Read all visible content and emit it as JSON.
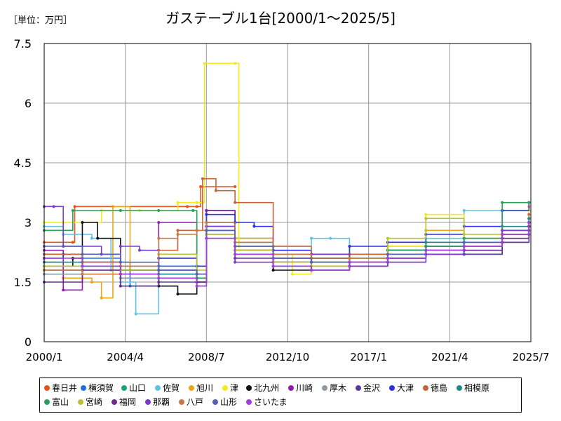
{
  "unit_label": "［単位：万円］",
  "title": "ガステーブル1台[2000/1～2025/5]",
  "chart_data": {
    "type": "line",
    "title": "ガステーブル1台[2000/1～2025/5]",
    "ylabel": "［単位：万円］",
    "ylim": [
      0,
      7.5
    ],
    "y_ticks": [
      "0",
      "1.5",
      "3",
      "4.5",
      "6",
      "7.5"
    ],
    "xlim": [
      2000.0,
      2025.5
    ],
    "x_tick_values": [
      2000.0,
      2004.25,
      2008.5,
      2012.75,
      2017.0,
      2021.25,
      2025.5
    ],
    "x_ticks": [
      "2000/1",
      "2004/4",
      "2008/7",
      "2012/10",
      "2017/1",
      "2021/4",
      "2025/7"
    ],
    "grid": true,
    "legend_position": "bottom",
    "series": [
      {
        "name": "春日井",
        "color": "#e8541c",
        "x": [
          2000.0,
          2001.5,
          2001.6,
          2007.5,
          2008.0,
          2008.2,
          2010.0
        ],
        "y": [
          2.5,
          2.5,
          3.4,
          3.4,
          3.4,
          3.9,
          3.9
        ]
      },
      {
        "name": "横須賀",
        "color": "#1f6fe0",
        "x": [
          2000.0,
          2002.0,
          2004.0,
          2004.5,
          2006.0,
          2008.0,
          2008.5,
          2010.0,
          2012.0,
          2014.0,
          2016.0,
          2018.0,
          2020.0,
          2022.0,
          2024.0,
          2025.4
        ],
        "y": [
          2.0,
          2.1,
          2.0,
          1.4,
          1.9,
          1.6,
          3.0,
          2.6,
          2.2,
          2.1,
          2.2,
          2.3,
          2.4,
          2.5,
          2.7,
          3.0
        ]
      },
      {
        "name": "山口",
        "color": "#19a27e",
        "x": [
          2000.0,
          2002.0,
          2004.0,
          2006.0,
          2008.0,
          2008.5,
          2010.0,
          2012.0,
          2014.0,
          2016.0,
          2018.0,
          2020.0,
          2022.0,
          2024.0,
          2025.4
        ],
        "y": [
          2.2,
          1.9,
          1.8,
          1.7,
          1.5,
          2.9,
          2.5,
          2.0,
          1.9,
          2.0,
          2.1,
          2.3,
          2.4,
          2.8,
          3.1
        ]
      },
      {
        "name": "佐賀",
        "color": "#5ec2e6",
        "x": [
          2000.0,
          2001.0,
          2002.5,
          2003.5,
          2004.0,
          2004.8,
          2006.0,
          2008.0,
          2008.5,
          2010.0,
          2012.0,
          2014.0,
          2015.0,
          2016.0,
          2018.0,
          2020.0,
          2022.0,
          2024.0,
          2025.4
        ],
        "y": [
          2.9,
          2.7,
          2.6,
          1.8,
          1.5,
          0.7,
          1.8,
          1.6,
          3.0,
          2.6,
          2.4,
          2.6,
          2.6,
          2.2,
          2.3,
          2.6,
          3.3,
          3.3,
          3.3
        ]
      },
      {
        "name": "旭川",
        "color": "#eaa614",
        "x": [
          2000.0,
          2001.0,
          2002.5,
          2003.0,
          2003.6,
          2004.5,
          2006.0,
          2008.0,
          2008.5,
          2010.0,
          2012.0,
          2014.0,
          2016.0,
          2018.0,
          2020.0,
          2022.0,
          2024.0,
          2025.4
        ],
        "y": [
          2.0,
          1.6,
          1.5,
          1.1,
          3.4,
          1.8,
          2.1,
          1.6,
          2.8,
          2.6,
          2.1,
          1.9,
          2.0,
          2.4,
          2.8,
          2.6,
          2.8,
          3.4
        ]
      },
      {
        "name": "津",
        "color": "#f5ea1a",
        "x": [
          2000.0,
          2001.0,
          2003.0,
          2005.0,
          2007.0,
          2008.0,
          2008.3,
          2008.4,
          2010.0,
          2010.2,
          2012.0,
          2013.0,
          2014.0,
          2016.0,
          2018.0,
          2020.0,
          2022.0,
          2024.0,
          2025.4
        ],
        "y": [
          3.0,
          3.0,
          3.3,
          3.3,
          3.5,
          3.5,
          3.5,
          7.0,
          7.0,
          2.4,
          2.2,
          1.7,
          1.8,
          2.0,
          2.4,
          3.2,
          2.6,
          2.8,
          3.3
        ]
      },
      {
        "name": "北九州",
        "color": "#111111",
        "x": [
          2000.0,
          2001.5,
          2002.0,
          2002.8,
          2004.0,
          2006.0,
          2007.0,
          2008.0,
          2008.5,
          2010.0,
          2012.0,
          2014.0,
          2016.0,
          2018.0,
          2020.0,
          2022.0,
          2024.0,
          2025.4
        ],
        "y": [
          1.9,
          2.1,
          3.0,
          2.6,
          1.6,
          1.4,
          1.2,
          1.5,
          3.3,
          2.3,
          1.8,
          2.0,
          2.1,
          2.3,
          2.2,
          2.2,
          2.5,
          2.9
        ]
      },
      {
        "name": "川崎",
        "color": "#8e1fb0",
        "x": [
          2000.0,
          2001.0,
          2002.0,
          2004.0,
          2006.0,
          2008.0,
          2008.5,
          2010.0,
          2012.0,
          2014.0,
          2016.0,
          2018.0,
          2020.0,
          2022.0,
          2024.0,
          2025.4
        ],
        "y": [
          2.3,
          1.3,
          2.0,
          1.7,
          3.0,
          1.5,
          3.3,
          2.2,
          2.0,
          2.1,
          2.0,
          2.1,
          2.3,
          2.5,
          2.7,
          2.9
        ]
      },
      {
        "name": "厚木",
        "color": "#8e99a6",
        "x": [
          2000.0,
          2002.0,
          2004.0,
          2006.0,
          2008.0,
          2008.5,
          2010.0,
          2012.0,
          2014.0,
          2016.0,
          2018.0,
          2020.0,
          2022.0,
          2024.0,
          2025.4
        ],
        "y": [
          1.7,
          1.8,
          1.6,
          1.8,
          1.6,
          2.7,
          2.4,
          2.0,
          2.1,
          1.9,
          2.2,
          2.4,
          2.3,
          2.6,
          3.0
        ]
      },
      {
        "name": "金沢",
        "color": "#5b3a99",
        "x": [
          2000.0,
          2002.0,
          2004.0,
          2006.0,
          2008.0,
          2008.5,
          2010.0,
          2012.0,
          2014.0,
          2016.0,
          2018.0,
          2020.0,
          2022.0,
          2024.0,
          2025.4
        ],
        "y": [
          1.8,
          2.0,
          1.7,
          1.5,
          1.4,
          2.8,
          2.3,
          2.0,
          1.8,
          2.0,
          2.1,
          2.4,
          2.2,
          2.5,
          2.8
        ]
      },
      {
        "name": "大津",
        "color": "#2e2fe6",
        "x": [
          2000.0,
          2001.0,
          2002.0,
          2004.0,
          2006.0,
          2008.0,
          2008.5,
          2010.0,
          2011.0,
          2012.0,
          2014.0,
          2016.0,
          2018.0,
          2020.0,
          2022.0,
          2024.0,
          2025.4
        ],
        "y": [
          2.1,
          2.2,
          2.0,
          1.8,
          2.1,
          1.9,
          3.2,
          3.0,
          2.9,
          2.3,
          2.2,
          2.4,
          2.5,
          2.7,
          2.9,
          3.3,
          3.5
        ]
      },
      {
        "name": "徳島",
        "color": "#c4643b",
        "x": [
          2000.0,
          2002.0,
          2004.0,
          2006.0,
          2007.0,
          2008.0,
          2008.3,
          2009.0,
          2010.0,
          2012.0,
          2014.0,
          2016.0,
          2018.0,
          2020.0,
          2022.0,
          2024.0,
          2025.4
        ],
        "y": [
          2.2,
          2.0,
          1.9,
          2.3,
          2.8,
          2.8,
          4.1,
          3.8,
          3.5,
          2.4,
          2.1,
          2.2,
          2.3,
          2.5,
          2.4,
          2.8,
          3.2
        ]
      },
      {
        "name": "相模原",
        "color": "#1d8a8a",
        "x": [
          2000.0,
          2002.0,
          2004.0,
          2006.0,
          2008.0,
          2008.5,
          2010.0,
          2012.0,
          2014.0,
          2016.0,
          2018.0,
          2020.0,
          2022.0,
          2024.0,
          2025.4
        ],
        "y": [
          2.0,
          1.9,
          1.8,
          1.7,
          1.6,
          2.8,
          2.5,
          2.1,
          2.0,
          2.1,
          2.3,
          2.5,
          2.6,
          2.9,
          3.1
        ]
      },
      {
        "name": "富山",
        "color": "#2aa15a",
        "x": [
          2000.0,
          2001.5,
          2004.0,
          2006.0,
          2007.8,
          2008.0,
          2008.5,
          2010.0,
          2012.0,
          2014.0,
          2016.0,
          2018.0,
          2020.0,
          2022.0,
          2024.0,
          2025.4
        ],
        "y": [
          2.8,
          3.3,
          3.3,
          3.3,
          3.3,
          1.6,
          2.9,
          2.4,
          2.2,
          2.0,
          2.1,
          2.3,
          2.4,
          2.6,
          3.5,
          3.5
        ]
      },
      {
        "name": "宮崎",
        "color": "#b8c232",
        "x": [
          2000.0,
          2002.0,
          2004.0,
          2006.0,
          2008.0,
          2008.5,
          2010.0,
          2012.0,
          2014.0,
          2016.0,
          2018.0,
          2020.0,
          2022.0,
          2024.0,
          2025.4
        ],
        "y": [
          1.9,
          1.7,
          1.8,
          2.2,
          1.8,
          2.7,
          2.3,
          2.0,
          1.9,
          2.1,
          2.6,
          3.1,
          2.7,
          2.7,
          3.0
        ]
      },
      {
        "name": "福岡",
        "color": "#6e2a8c",
        "x": [
          2000.0,
          2002.0,
          2004.0,
          2006.0,
          2008.0,
          2008.5,
          2010.0,
          2012.0,
          2014.0,
          2016.0,
          2018.0,
          2020.0,
          2022.0,
          2024.0,
          2025.4
        ],
        "y": [
          1.5,
          1.8,
          1.4,
          1.6,
          1.5,
          2.6,
          2.1,
          1.9,
          1.8,
          1.9,
          2.0,
          2.2,
          2.3,
          2.6,
          2.9
        ]
      },
      {
        "name": "那覇",
        "color": "#7a3ad0",
        "x": [
          2000.0,
          2000.5,
          2001.0,
          2003.0,
          2004.0,
          2005.0,
          2006.0,
          2008.0,
          2008.5,
          2010.0,
          2012.0,
          2014.0,
          2016.0,
          2018.0,
          2020.0,
          2022.0,
          2024.0,
          2025.4
        ],
        "y": [
          3.4,
          3.4,
          2.4,
          2.2,
          2.4,
          2.3,
          1.8,
          1.7,
          2.9,
          2.0,
          2.1,
          2.2,
          1.9,
          2.0,
          2.2,
          2.4,
          2.8,
          2.7
        ]
      },
      {
        "name": "八戸",
        "color": "#c97a4a",
        "x": [
          2000.0,
          2002.0,
          2004.0,
          2006.0,
          2007.0,
          2008.0,
          2008.5,
          2010.0,
          2012.0,
          2014.0,
          2016.0,
          2018.0,
          2020.0,
          2022.0,
          2024.0,
          2025.4
        ],
        "y": [
          1.8,
          1.7,
          1.9,
          2.6,
          2.7,
          2.8,
          3.0,
          2.5,
          2.2,
          2.0,
          2.1,
          2.2,
          2.3,
          2.4,
          2.7,
          3.0
        ]
      },
      {
        "name": "山形",
        "color": "#5560b8",
        "x": [
          2000.0,
          2002.0,
          2004.0,
          2006.0,
          2008.0,
          2008.5,
          2010.0,
          2012.0,
          2014.0,
          2016.0,
          2018.0,
          2020.0,
          2022.0,
          2024.0,
          2025.4
        ],
        "y": [
          2.4,
          2.2,
          2.0,
          1.8,
          1.7,
          2.8,
          2.4,
          2.1,
          2.0,
          2.0,
          2.2,
          2.3,
          2.5,
          2.7,
          3.0
        ]
      },
      {
        "name": "さいたま",
        "color": "#a53ee0",
        "x": [
          2000.0,
          2002.0,
          2004.0,
          2006.0,
          2008.0,
          2008.5,
          2010.0,
          2012.0,
          2014.0,
          2016.0,
          2018.0,
          2020.0,
          2022.0,
          2024.0,
          2025.4
        ],
        "y": [
          2.1,
          1.9,
          1.7,
          1.6,
          1.4,
          2.6,
          2.2,
          1.9,
          1.8,
          2.0,
          2.1,
          2.3,
          2.4,
          2.7,
          3.0
        ]
      }
    ]
  }
}
